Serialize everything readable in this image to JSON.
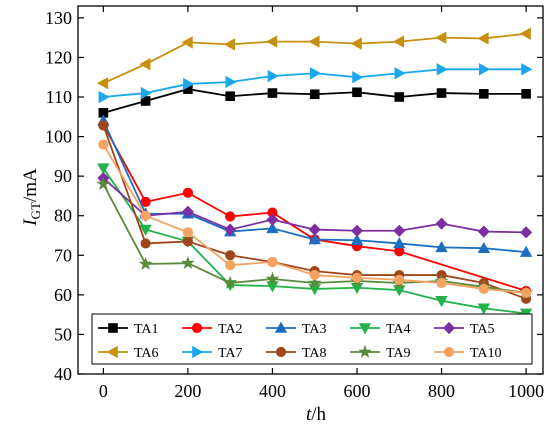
{
  "chart_data": {
    "type": "line",
    "x_axis": {
      "label": "t",
      "unit": "/h",
      "range": [
        -60,
        1040
      ],
      "ticks": [
        0,
        200,
        400,
        600,
        800,
        1000
      ]
    },
    "y_axis": {
      "label": "I",
      "subscript": "GT",
      "unit": "/mA",
      "range": [
        40,
        133
      ],
      "ticks": [
        40,
        50,
        60,
        70,
        80,
        90,
        100,
        110,
        120,
        130
      ]
    },
    "x": [
      0,
      100,
      200,
      300,
      400,
      500,
      600,
      700,
      800,
      900,
      1000
    ],
    "series": [
      {
        "name": "TA1",
        "color": "#000000",
        "marker": "square",
        "values": [
          106,
          109,
          112,
          110.2,
          111,
          110.7,
          111.2,
          110,
          111,
          110.8,
          110.8
        ]
      },
      {
        "name": "TA2",
        "color": "#ff0000",
        "marker": "circle",
        "values": [
          103,
          83.5,
          85.8,
          79.8,
          80.8,
          74,
          72.3,
          71,
          null,
          null,
          61
        ]
      },
      {
        "name": "TA3",
        "color": "#1a6fc4",
        "marker": "triangle-up",
        "values": [
          104,
          80.5,
          80.5,
          76,
          76.8,
          74,
          73.8,
          73,
          72,
          71.8,
          70.8
        ]
      },
      {
        "name": "TA4",
        "color": "#22b24c",
        "marker": "triangle-down",
        "values": [
          92,
          76.5,
          73.5,
          62.5,
          62.2,
          61.5,
          61.8,
          61.2,
          58.5,
          56.6,
          55.3
        ]
      },
      {
        "name": "TA5",
        "color": "#7c2fa3",
        "marker": "diamond",
        "values": [
          89.5,
          80,
          81,
          76.5,
          79,
          76.5,
          76.2,
          76.2,
          78,
          76,
          75.8
        ]
      },
      {
        "name": "TA6",
        "color": "#c7900e",
        "marker": "triangle-left",
        "values": [
          113.5,
          118.3,
          123.8,
          123.3,
          124,
          124,
          123.5,
          124,
          125,
          124.8,
          126
        ]
      },
      {
        "name": "TA7",
        "color": "#1aa7ee",
        "marker": "triangle-right",
        "values": [
          110,
          111,
          113.3,
          113.8,
          115.3,
          116,
          115,
          116,
          117,
          117,
          117
        ]
      },
      {
        "name": "TA8",
        "color": "#a0461b",
        "marker": "circle",
        "values": [
          102.8,
          73,
          73.5,
          70,
          68.3,
          66,
          65,
          65,
          65,
          63,
          59
        ]
      },
      {
        "name": "TA9",
        "color": "#5d8a3a",
        "marker": "star",
        "values": [
          88,
          67.8,
          68,
          63,
          64,
          63,
          63.5,
          63,
          63.5,
          62,
          60.5
        ]
      },
      {
        "name": "TA10",
        "color": "#f4a460",
        "marker": "circle",
        "values": [
          98,
          80,
          75.8,
          67.5,
          68.3,
          65,
          64.3,
          63.8,
          63,
          61.5,
          60.5
        ]
      }
    ],
    "legend_position": "bottom, inside plot",
    "grid": false
  }
}
